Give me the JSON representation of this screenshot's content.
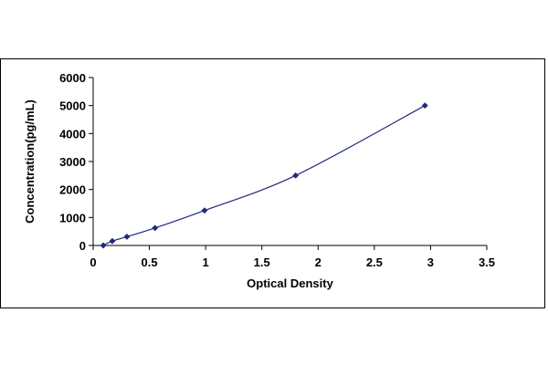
{
  "chart_data": {
    "type": "scatter",
    "title": "",
    "xlabel": "Optical Density",
    "ylabel": "Concentration(pg/mL)",
    "xlim": [
      0,
      3.5
    ],
    "ylim": [
      0,
      6000
    ],
    "x_ticks": [
      0,
      0.5,
      1,
      1.5,
      2,
      2.5,
      3,
      3.5
    ],
    "x_tick_labels": [
      "0",
      "0.5",
      "1",
      "1.5",
      "2",
      "2.5",
      "3",
      "3.5"
    ],
    "y_ticks": [
      0,
      1000,
      2000,
      3000,
      4000,
      5000,
      6000
    ],
    "y_tick_labels": [
      "0",
      "1000",
      "2000",
      "3000",
      "4000",
      "5000",
      "6000"
    ],
    "grid": false,
    "legend": "none",
    "marker": "diamond",
    "trendline": "smooth curve through points",
    "colors": {
      "marker": "#1f2a7a",
      "line": "#1f2a7a",
      "axis": "#000000"
    },
    "series": [
      {
        "x": [
          0.09,
          0.17,
          0.3,
          0.55,
          0.99,
          1.8,
          2.95
        ],
        "y": [
          0,
          156,
          312,
          625,
          1250,
          2500,
          5000
        ]
      }
    ]
  }
}
